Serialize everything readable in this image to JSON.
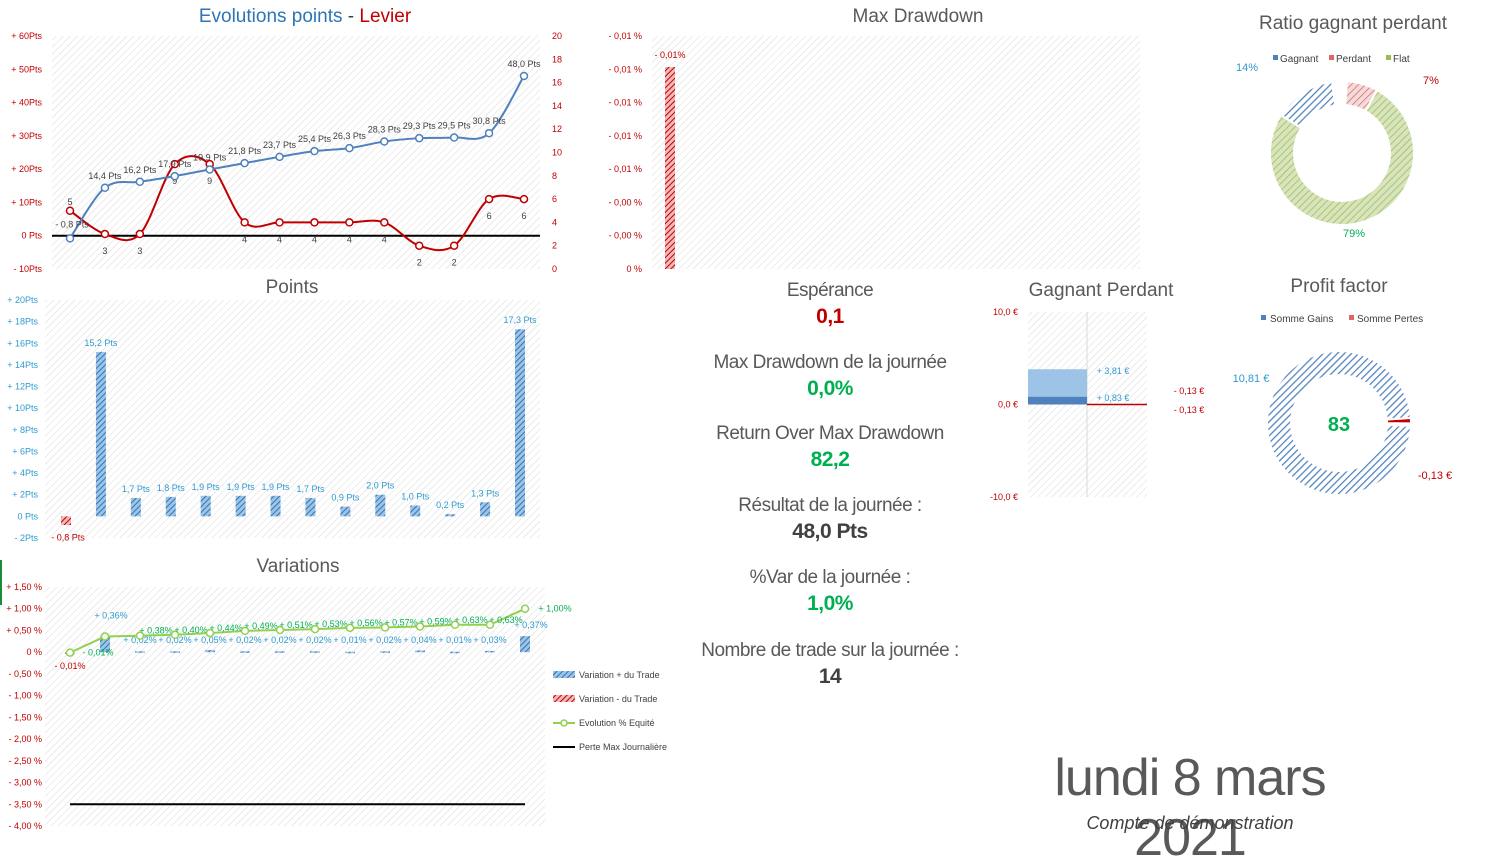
{
  "colors": {
    "blue": "#4f81bd",
    "blue_hatch": "#2e75b6",
    "red": "#c00000",
    "green_line": "#92d050",
    "green_val": "#00b050",
    "label_blue": "#2e9ad0",
    "grey_text": "#595959",
    "light_green": "#c4d79b",
    "light_red": "#e6878a",
    "light_blue": "#9dc3e6"
  },
  "kpis": {
    "esperance_label": "Espérance",
    "esperance_value": "0,1",
    "max_dd_label": "Max Drawdown de la journée",
    "max_dd_value": "0,0%",
    "romad_label": "Return Over Max Drawdown",
    "romad_value": "82,2",
    "resultat_label": "Résultat de la journée :",
    "resultat_value": "48,0 Pts",
    "var_label": "%Var de la journée :",
    "var_value": "1,0%",
    "trades_label": "Nombre de trade sur la journée :",
    "trades_value": "14"
  },
  "date": "lundi 8 mars 2021",
  "subtitle": "Compte de démonstration",
  "chart_data": [
    {
      "id": "evolution",
      "type": "line",
      "title_part1": "Evolutions points",
      "title_sep": " - ",
      "title_part2": "Levier",
      "y_ticks": [
        "+ 60Pts",
        "+ 50Pts",
        "+ 40Pts",
        "+ 30Pts",
        "+ 20Pts",
        "+ 10Pts",
        "0 Pts",
        "- 10Pts"
      ],
      "y_min": -10,
      "y_max": 60,
      "y2_ticks": [
        "20",
        "18",
        "16",
        "14",
        "12",
        "10",
        "8",
        "6",
        "4",
        "2",
        "0"
      ],
      "y2_min": 0,
      "y2_max": 20,
      "series": [
        {
          "name": "Points",
          "values": [
            -0.8,
            14.4,
            16.2,
            17.9,
            19.9,
            21.8,
            23.7,
            25.4,
            26.3,
            28.3,
            29.3,
            29.5,
            30.8,
            48.0
          ],
          "labels": [
            "- 0,8 Pts",
            "14,4 Pts",
            "16,2 Pts",
            "17,9 Pts",
            "19,9 Pts",
            "21,8 Pts",
            "23,7 Pts",
            "25,4 Pts",
            "26,3 Pts",
            "28,3 Pts",
            "29,3 Pts",
            "29,5 Pts",
            "30,8 Pts",
            "48,0 Pts"
          ]
        },
        {
          "name": "Levier",
          "values": [
            5,
            3,
            3,
            9,
            9,
            4,
            4,
            4,
            4,
            4,
            2,
            2,
            6,
            6
          ],
          "labels": [
            "5",
            "3",
            "3",
            "9",
            "9",
            "4",
            "4",
            "4",
            "4",
            "4",
            "2",
            "2",
            "6",
            "6"
          ]
        }
      ]
    },
    {
      "id": "points",
      "type": "bar",
      "title": "Points",
      "y_ticks": [
        "+ 20Pts",
        "+ 18Pts",
        "+ 16Pts",
        "+ 14Pts",
        "+ 12Pts",
        "+ 10Pts",
        "+ 8Pts",
        "+ 6Pts",
        "+ 4Pts",
        "+ 2Pts",
        "0 Pts",
        "- 2Pts"
      ],
      "y_min": -2,
      "y_max": 20,
      "values": [
        -0.8,
        15.2,
        1.7,
        1.8,
        1.9,
        1.9,
        1.9,
        1.7,
        0.9,
        2.0,
        1.0,
        0.2,
        1.3,
        17.3
      ],
      "labels": [
        "- 0,8 Pts",
        "15,2 Pts",
        "1,7 Pts",
        "1,8 Pts",
        "1,9 Pts",
        "1,9 Pts",
        "1,9 Pts",
        "1,7 Pts",
        "0,9 Pts",
        "2,0 Pts",
        "1,0 Pts",
        "0,2 Pts",
        "1,3 Pts",
        "17,3 Pts"
      ]
    },
    {
      "id": "variations",
      "type": "bar",
      "title": "Variations",
      "y_ticks": [
        "+ 1,50 %",
        "+ 1,00 %",
        "+ 0,50 %",
        "0 %",
        "- 0,50 %",
        "- 1,00 %",
        "- 1,50 %",
        "- 2,00 %",
        "- 2,50 %",
        "- 3,00 %",
        "- 3,50 %",
        "- 4,00 %"
      ],
      "y_min": -4.0,
      "y_max": 1.5,
      "bar_values": [
        -0.01,
        0.36,
        0.02,
        0.02,
        0.05,
        0.02,
        0.02,
        0.02,
        0.01,
        0.02,
        0.04,
        0.01,
        0.03,
        0.37
      ],
      "bar_labels": [
        "- 0,01%",
        "+ 0,36%",
        "+ 0,02%",
        "+ 0,02%",
        "+ 0,05%",
        "+ 0,02%",
        "+ 0,02%",
        "+ 0,02%",
        "+ 0,01%",
        "+ 0,02%",
        "+ 0,04%",
        "+ 0,01%",
        "+ 0,03%",
        "+ 0,37%"
      ],
      "equity_values": [
        -0.01,
        0.36,
        0.38,
        0.4,
        0.44,
        0.49,
        0.51,
        0.53,
        0.56,
        0.57,
        0.59,
        0.63,
        0.63,
        1.0
      ],
      "equity_labels": [
        "- 0,01%",
        "+ 0,36%",
        "+ 0,38%",
        "+ 0,40%",
        "+ 0,44%",
        "+ 0,49%",
        "+ 0,51%",
        "+ 0,53%",
        "+ 0,56%",
        "+ 0,57%",
        "+ 0,59%",
        "+ 0,63%",
        "+ 0,63%",
        "+ 1,00%"
      ],
      "max_loss": -3.5,
      "legend": [
        "Variation + du Trade",
        "Variation - du Trade",
        "Evolution % Equité",
        "Perte Max Journalière"
      ]
    },
    {
      "id": "maxdd",
      "type": "bar",
      "title": "Max Drawdown",
      "y_ticks": [
        "- 0,01 %",
        "- 0,01 %",
        "- 0,01 %",
        "- 0,01 %",
        "- 0,01 %",
        "- 0,00 %",
        "- 0,00 %",
        "0 %"
      ],
      "values": [
        -0.01
      ],
      "labels": [
        "- 0,01%"
      ]
    },
    {
      "id": "gagnant_perdant",
      "type": "bar",
      "title": "Gagnant Perdant",
      "y_ticks": [
        "10,0 €",
        "0,0 €",
        "-10,0 €"
      ],
      "y_min": -10,
      "y_max": 10,
      "values": [
        3.81,
        0.83,
        -0.13,
        -0.13
      ],
      "labels": [
        "+ 3,81 €",
        "+ 0,83 €",
        "- 0,13 €",
        "- 0,13 €"
      ]
    },
    {
      "id": "ratio",
      "type": "pie",
      "title": "Ratio gagnant perdant",
      "legend": [
        "Gagnant",
        "Perdant",
        "Flat"
      ],
      "values": [
        14,
        7,
        79
      ],
      "labels": [
        "14%",
        "7%",
        "79%"
      ]
    },
    {
      "id": "profit_factor",
      "type": "pie",
      "title": "Profit factor",
      "legend": [
        "Somme Gains",
        "Somme Pertes"
      ],
      "values": [
        10.81,
        0.13
      ],
      "labels": [
        "10,81 €",
        "-0,13 €"
      ],
      "center": "83"
    }
  ]
}
